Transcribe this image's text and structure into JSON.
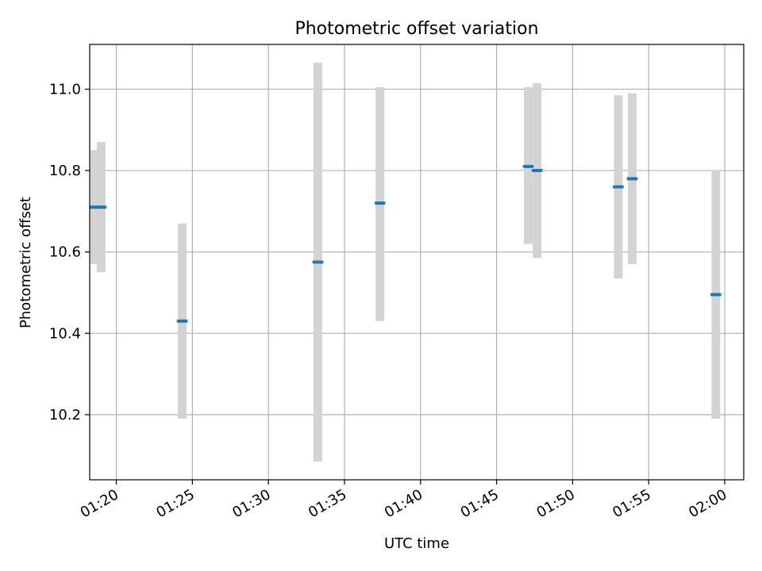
{
  "chart_data": {
    "type": "scatter",
    "title": "Photometric offset variation",
    "xlabel": "UTC time",
    "ylabel": "Photometric offset",
    "x_axis_kind": "time",
    "xlim": [
      "01:18:15",
      "02:01:15"
    ],
    "ylim": [
      10.04,
      11.11
    ],
    "x_ticks": [
      "01:20",
      "01:25",
      "01:30",
      "01:35",
      "01:40",
      "01:45",
      "01:50",
      "01:55",
      "02:00"
    ],
    "y_ticks": [
      10.2,
      10.4,
      10.6,
      10.8,
      11.0
    ],
    "y_tick_labels": [
      "10.2",
      "10.4",
      "10.6",
      "10.8",
      "11.0"
    ],
    "grid": true,
    "legend": "none",
    "colors": {
      "marker": "#1f77b4",
      "errorbar": "#d3d3d3",
      "grid": "#b0b0b0",
      "axes": "#000000"
    },
    "series": [
      {
        "points": [
          {
            "t": "01:18:35",
            "y": 10.71,
            "lo": 10.57,
            "hi": 10.85
          },
          {
            "t": "01:19:00",
            "y": 10.71,
            "lo": 10.55,
            "hi": 10.87
          },
          {
            "t": "01:24:20",
            "y": 10.43,
            "lo": 10.19,
            "hi": 10.67
          },
          {
            "t": "01:33:15",
            "y": 10.575,
            "lo": 10.085,
            "hi": 11.065
          },
          {
            "t": "01:37:20",
            "y": 10.72,
            "lo": 10.43,
            "hi": 11.005
          },
          {
            "t": "01:47:05",
            "y": 10.81,
            "lo": 10.62,
            "hi": 11.005
          },
          {
            "t": "01:47:40",
            "y": 10.8,
            "lo": 10.585,
            "hi": 11.015
          },
          {
            "t": "01:53:00",
            "y": 10.76,
            "lo": 10.535,
            "hi": 10.985
          },
          {
            "t": "01:53:55",
            "y": 10.78,
            "lo": 10.57,
            "hi": 10.99
          },
          {
            "t": "01:59:25",
            "y": 10.495,
            "lo": 10.19,
            "hi": 10.8
          }
        ]
      }
    ]
  }
}
